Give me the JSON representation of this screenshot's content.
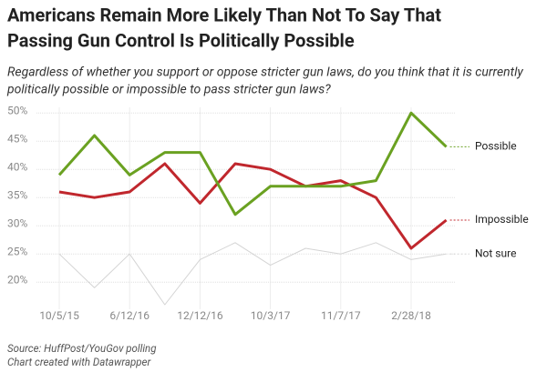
{
  "chart_data": {
    "type": "line",
    "title": [
      "Americans Remain More Likely Than Not To Say That",
      "Passing Gun Control Is Politically Possible"
    ],
    "subtitle": [
      "Regardless of whether you support or oppose stricter gun laws, do you think that it is currently",
      "politically possible or impossible to pass stricter gun laws?"
    ],
    "source": [
      "Source: HuffPost/YouGov polling",
      "Chart created with Datawrapper"
    ],
    "categories": [
      "10/5/15",
      null,
      "6/12/16",
      null,
      "12/12/16",
      null,
      "10/3/17",
      null,
      "11/7/17",
      null,
      "2/28/18",
      null
    ],
    "series": [
      {
        "name": "Possible",
        "color": "#6aa121",
        "values": [
          39,
          46,
          39,
          43,
          43,
          32,
          37,
          37,
          37,
          38,
          50,
          44
        ]
      },
      {
        "name": "Impossible",
        "color": "#c0272d",
        "values": [
          36,
          35,
          36,
          41,
          34,
          41,
          40,
          37,
          38,
          35,
          26,
          31
        ]
      },
      {
        "name": "Not sure",
        "color": "#d4d4d4",
        "values": [
          25,
          19,
          25,
          16,
          24,
          27,
          23,
          26,
          25,
          27,
          24,
          25
        ]
      }
    ],
    "ylim": [
      16,
      51
    ],
    "yticks": [
      {
        "value": 20,
        "label": "20%"
      },
      {
        "value": 25,
        "label": "25%"
      },
      {
        "value": 30,
        "label": "30%"
      },
      {
        "value": 35,
        "label": "35%"
      },
      {
        "value": 40,
        "label": "40%"
      },
      {
        "value": 45,
        "label": "45%"
      },
      {
        "value": 50,
        "label": "50%"
      }
    ],
    "grid": true
  }
}
